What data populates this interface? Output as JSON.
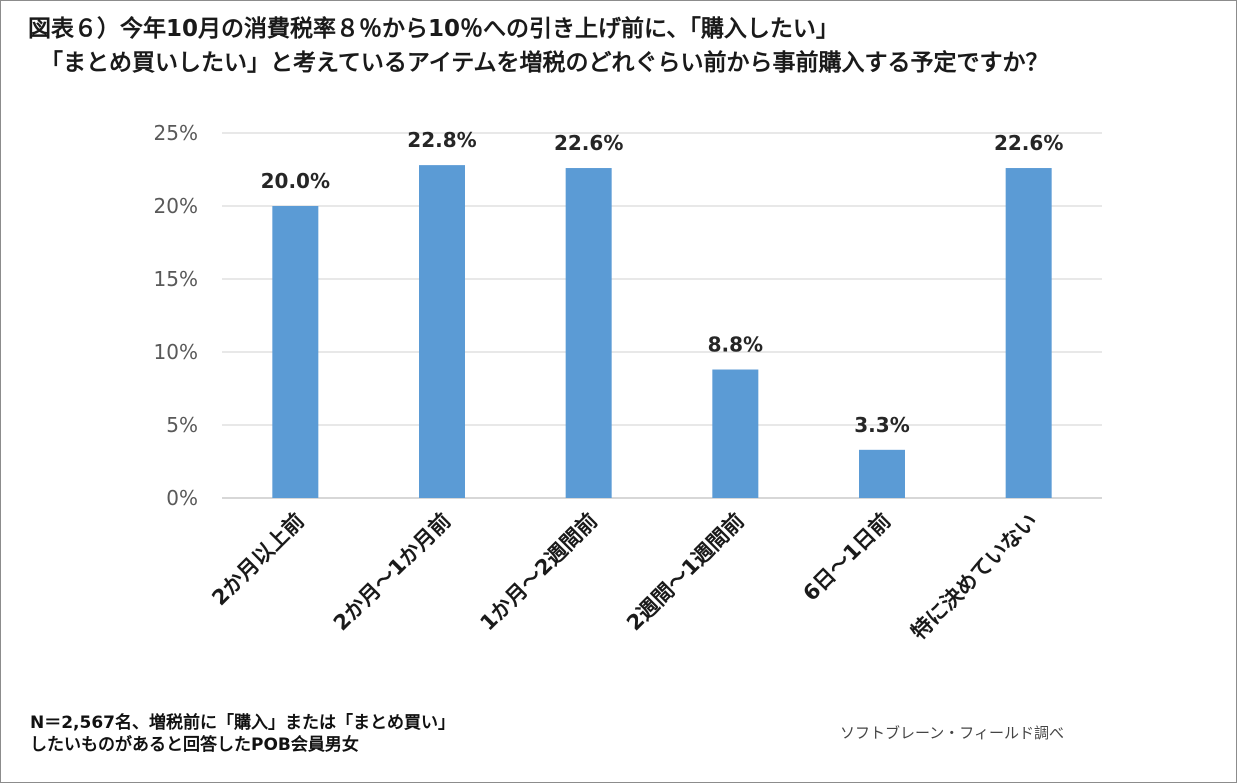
{
  "title": {
    "line1": "図表６）今年10月の消費税率８％から10％への引き上げ前に、「購入したい」",
    "line2": "「まとめ買いしたい」と考えているアイテムを増税のどれぐらい前から事前購入する予定ですか？"
  },
  "note": {
    "line1": "N＝2,567名、増税前に「購入」または「まとめ買い」",
    "line2": "したいものがあると回答したPOB会員男女"
  },
  "source": "ソフトブレーン・フィールド調べ",
  "chart_data": {
    "type": "bar",
    "categories": [
      "2か月以上前",
      "2か月～1か月前",
      "1か月～2週間前",
      "2週間～1週間前",
      "6日～1日前",
      "特に決めていない"
    ],
    "values": [
      20.0,
      22.8,
      22.6,
      8.8,
      3.3,
      22.6
    ],
    "data_labels": [
      "20.0%",
      "22.8%",
      "22.6%",
      "8.8%",
      "3.3%",
      "22.6%"
    ],
    "y_ticks": [
      "0%",
      "5%",
      "10%",
      "15%",
      "20%",
      "25%"
    ],
    "ylim": [
      0,
      25
    ],
    "grid": true,
    "bar_color": "#5b9bd5",
    "grid_color": "#d9d9d9",
    "xlabel": "",
    "ylabel": ""
  }
}
